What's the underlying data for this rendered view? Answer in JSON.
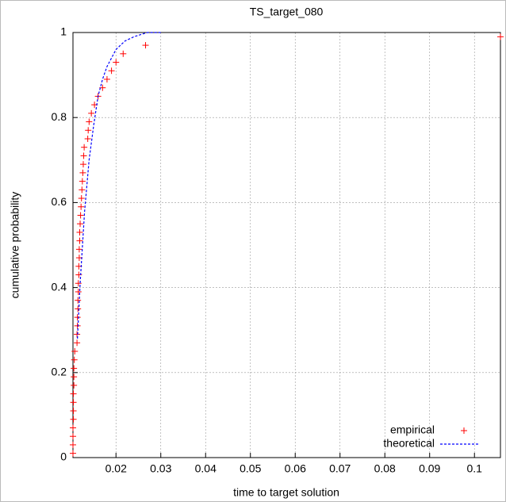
{
  "chart_data": {
    "type": "scatter",
    "title": "TS_target_080",
    "x_label": "time to target solution",
    "y_label": "cumulative probability",
    "xlim": [
      0.0104,
      0.1058
    ],
    "ylim": [
      0,
      1
    ],
    "xticks": [
      0.02,
      0.03,
      0.04,
      0.05,
      0.06,
      0.07,
      0.08,
      0.09,
      0.1
    ],
    "yticks": [
      0,
      0.2,
      0.4,
      0.6,
      0.8,
      1
    ],
    "grid": true,
    "legend": "bottom-right",
    "series": [
      {
        "name": "empirical",
        "color": "#ff0000",
        "marker": "+",
        "x": [
          0.0104,
          0.0104,
          0.0104,
          0.0104,
          0.0105,
          0.0105,
          0.0105,
          0.0105,
          0.0106,
          0.0106,
          0.0106,
          0.0107,
          0.0108,
          0.0113,
          0.0113,
          0.0114,
          0.0114,
          0.0115,
          0.0115,
          0.0116,
          0.0116,
          0.0117,
          0.0117,
          0.0118,
          0.0118,
          0.0119,
          0.0119,
          0.012,
          0.0121,
          0.0122,
          0.0123,
          0.0124,
          0.0125,
          0.0126,
          0.0127,
          0.0128,
          0.0129,
          0.0137,
          0.0138,
          0.014,
          0.0145,
          0.0152,
          0.016,
          0.017,
          0.018,
          0.019,
          0.02,
          0.0216,
          0.0266,
          0.1058
        ],
        "values": [
          0.01,
          0.03,
          0.05,
          0.07,
          0.09,
          0.11,
          0.13,
          0.15,
          0.17,
          0.19,
          0.21,
          0.23,
          0.25,
          0.27,
          0.29,
          0.31,
          0.33,
          0.35,
          0.37,
          0.39,
          0.41,
          0.43,
          0.45,
          0.47,
          0.49,
          0.51,
          0.53,
          0.55,
          0.57,
          0.59,
          0.61,
          0.63,
          0.65,
          0.67,
          0.69,
          0.71,
          0.73,
          0.75,
          0.77,
          0.79,
          0.81,
          0.83,
          0.85,
          0.87,
          0.89,
          0.91,
          0.93,
          0.95,
          0.97,
          0.99
        ]
      },
      {
        "name": "theoretical",
        "color": "#0000ff",
        "line": "dashed",
        "x": [
          0.0114,
          0.012,
          0.013,
          0.014,
          0.015,
          0.016,
          0.017,
          0.018,
          0.019,
          0.02,
          0.022,
          0.024,
          0.027,
          0.03
        ],
        "values": [
          0.28,
          0.41,
          0.58,
          0.7,
          0.78,
          0.85,
          0.89,
          0.92,
          0.94,
          0.96,
          0.98,
          0.99,
          1,
          1
        ]
      }
    ]
  }
}
